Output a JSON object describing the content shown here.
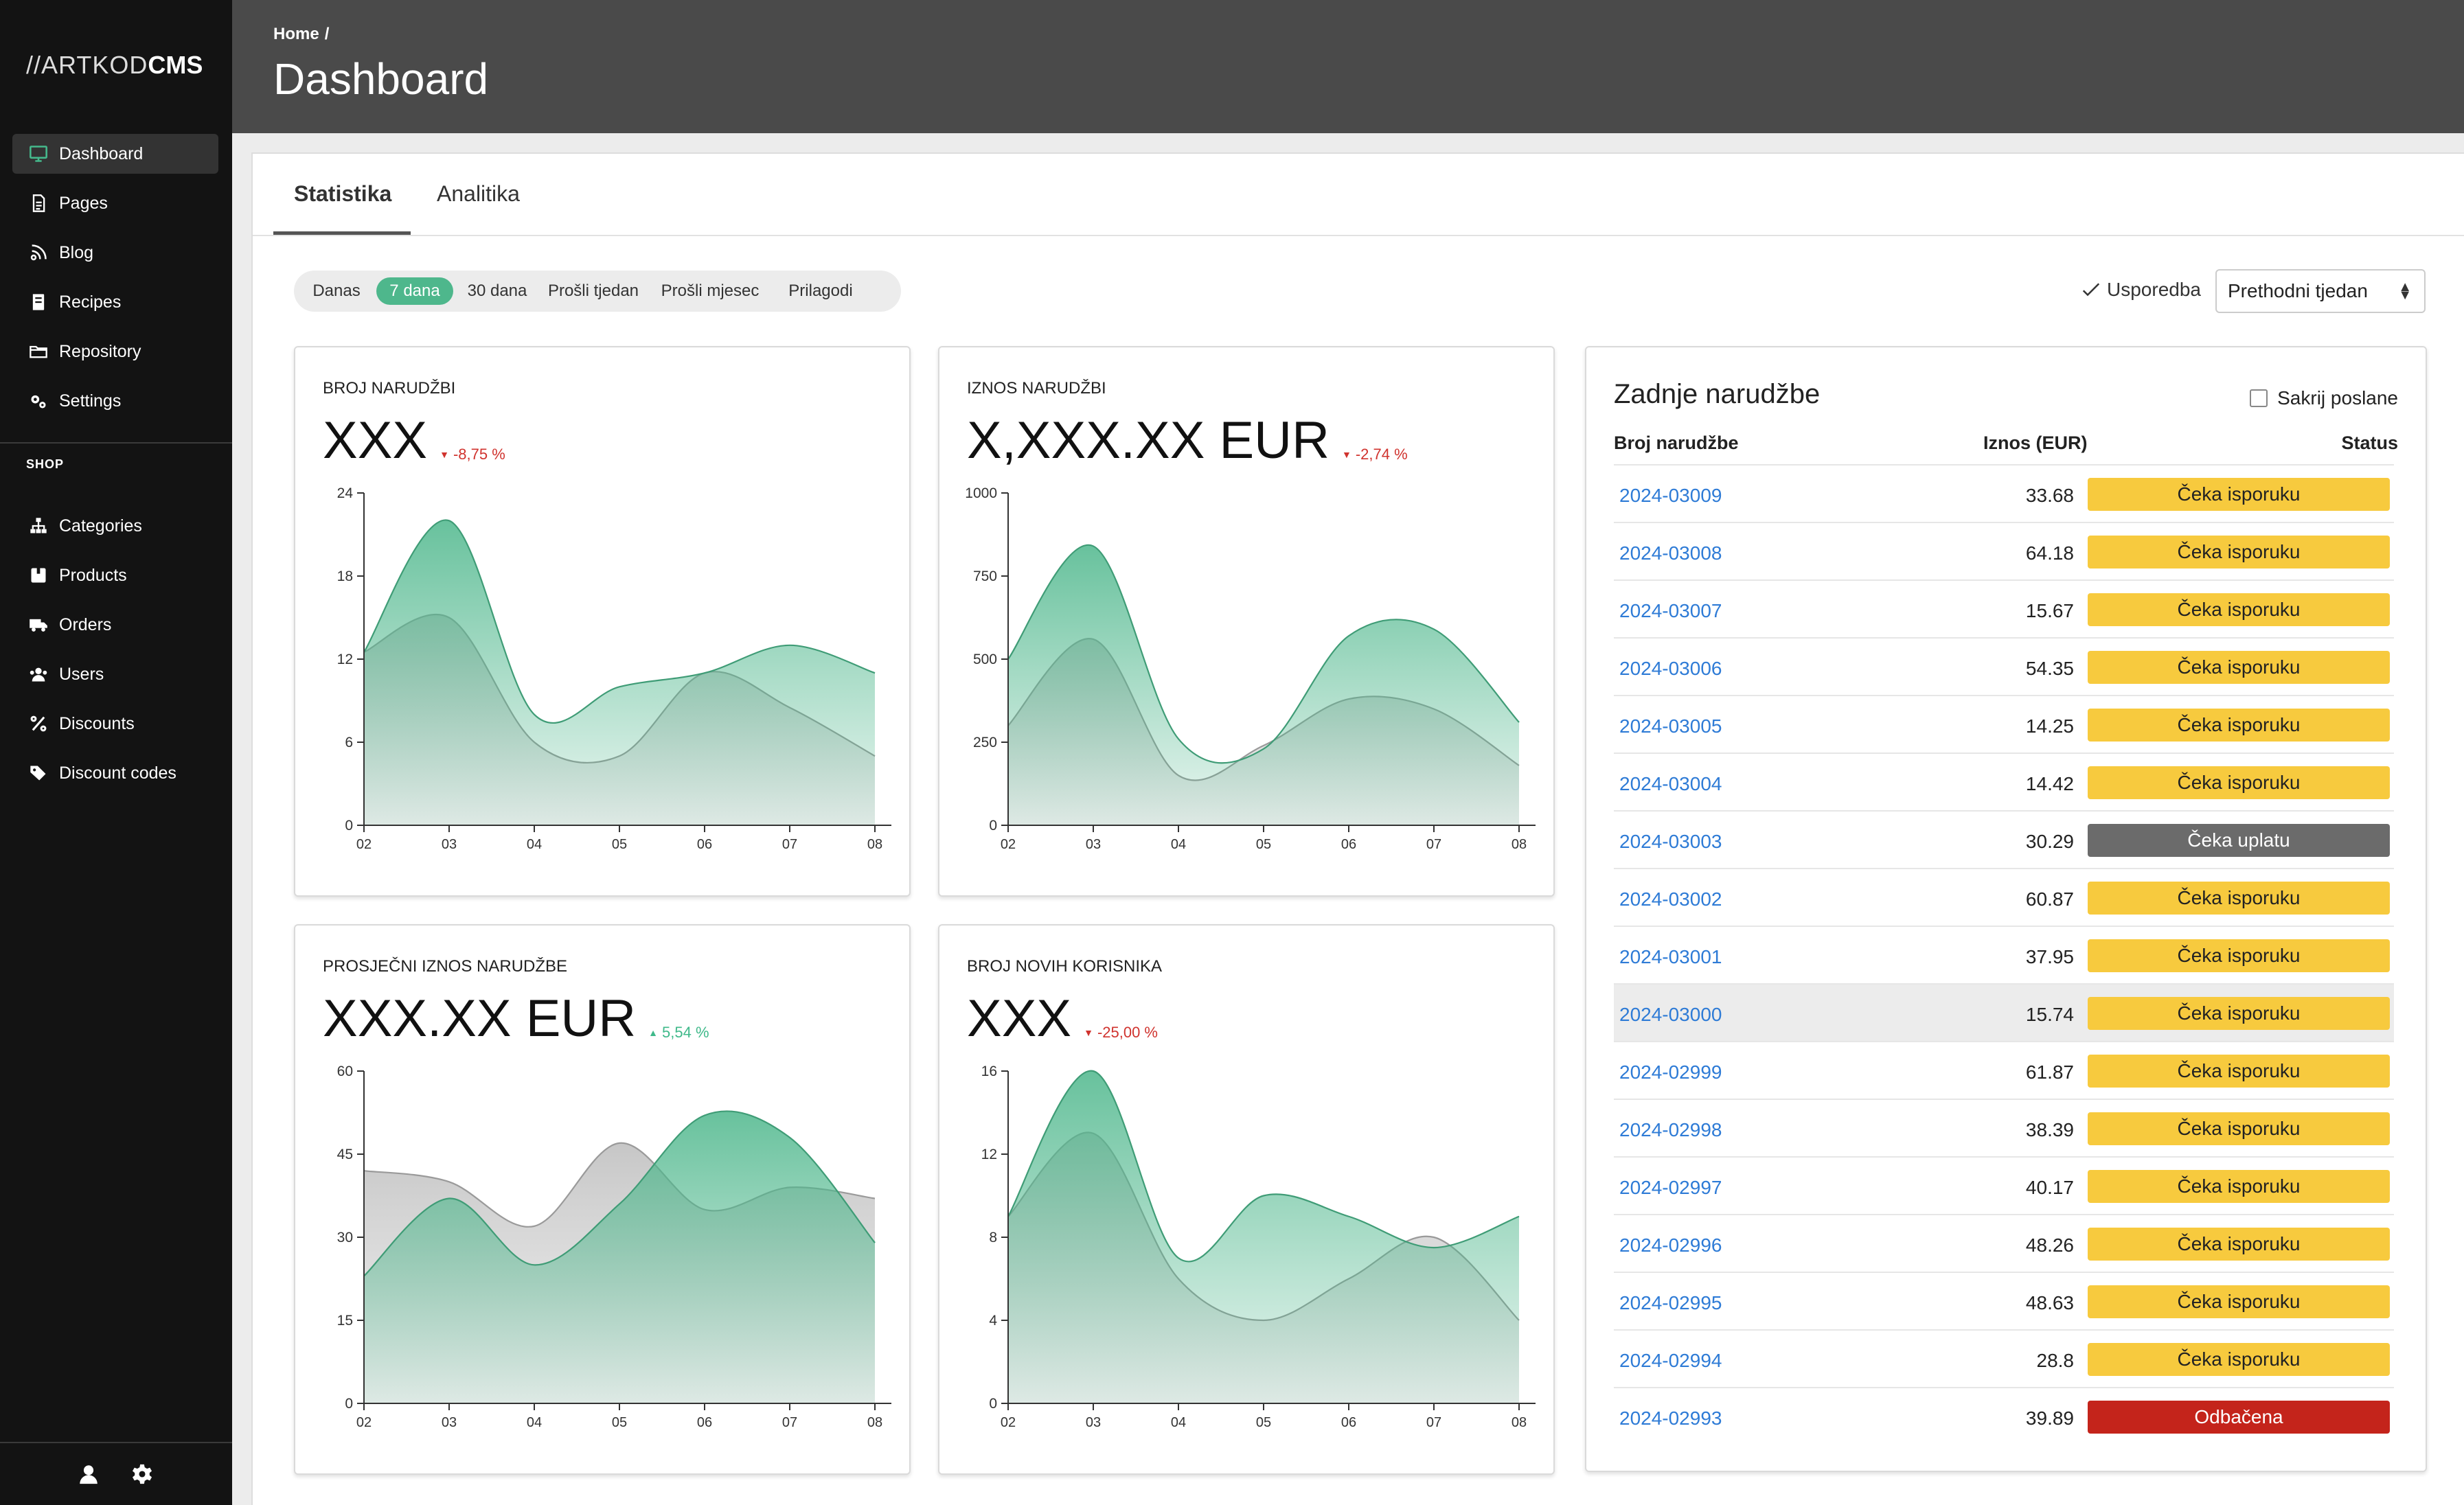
{
  "app": {
    "brand_light": "//ARTKOD",
    "brand_bold": "CMS"
  },
  "sidebar": {
    "items": [
      {
        "label": "Dashboard",
        "icon": "monitor-icon",
        "active": true
      },
      {
        "label": "Pages",
        "icon": "document-icon"
      },
      {
        "label": "Blog",
        "icon": "blog-icon"
      },
      {
        "label": "Recipes",
        "icon": "recipe-book-icon"
      },
      {
        "label": "Repository",
        "icon": "folder-icon"
      },
      {
        "label": "Settings",
        "icon": "gears-icon"
      }
    ],
    "shop_section": "SHOP",
    "shop_items": [
      {
        "label": "Categories",
        "icon": "sitemap-icon"
      },
      {
        "label": "Products",
        "icon": "box-icon"
      },
      {
        "label": "Orders",
        "icon": "truck-icon"
      },
      {
        "label": "Users",
        "icon": "users-icon"
      },
      {
        "label": "Discounts",
        "icon": "percent-icon"
      },
      {
        "label": "Discount codes",
        "icon": "tags-icon"
      }
    ],
    "footer_icons": [
      "user-icon",
      "gear-icon"
    ]
  },
  "header": {
    "breadcrumb_home": "Home",
    "breadcrumb_sep": "/",
    "title": "Dashboard"
  },
  "tabs": [
    {
      "label": "Statistika",
      "active": true
    },
    {
      "label": "Analitika"
    }
  ],
  "periods": [
    {
      "label": "Danas"
    },
    {
      "label": "7 dana",
      "active": true
    },
    {
      "label": "30 dana"
    },
    {
      "label": "Prošli tjedan"
    },
    {
      "label": "Prošli mjesec"
    },
    {
      "label": "Prilagodi"
    }
  ],
  "compare": {
    "label": "Usporedba",
    "checked": true,
    "select_value": "Prethodni tjedan"
  },
  "colors": {
    "accent": "#4eb78c",
    "sidebar": "#131313",
    "header": "#4a4a4a",
    "down": "#d0332e",
    "up": "#3fb98a",
    "link": "#2e7bd6",
    "waiting": "#f7ca3e",
    "payment": "#6b6b6b",
    "rejected": "#c4241b"
  },
  "cards": [
    {
      "label": "BROJ NARUDŽBI",
      "value": "XXX",
      "delta": "-8,75 %",
      "direction": "down"
    },
    {
      "label": "IZNOS NARUDŽBI",
      "value": "X,XXX.XX EUR",
      "delta": "-2,74 %",
      "direction": "down"
    },
    {
      "label": "PROSJEČNI IZNOS NARUDŽBE",
      "value": "XXX.XX EUR",
      "delta": "5,54 %",
      "direction": "up"
    },
    {
      "label": "BROJ NOVIH KORISNIKA",
      "value": "XXX",
      "delta": "-25,00 %",
      "direction": "down"
    }
  ],
  "chart_data": [
    {
      "type": "area",
      "x": [
        "02",
        "03",
        "04",
        "05",
        "06",
        "07",
        "08"
      ],
      "ylim": [
        0,
        24
      ],
      "yticks": [
        0,
        6,
        12,
        18,
        24
      ],
      "series": [
        {
          "values": [
            12.5,
            15,
            6,
            5,
            11,
            8.5,
            5
          ]
        },
        {
          "values": [
            12.5,
            22,
            8,
            10,
            11,
            13,
            11
          ]
        }
      ]
    },
    {
      "type": "area",
      "x": [
        "02",
        "03",
        "04",
        "05",
        "06",
        "07",
        "08"
      ],
      "ylim": [
        0,
        1000
      ],
      "yticks": [
        0,
        250,
        500,
        750,
        1000
      ],
      "series": [
        {
          "values": [
            300,
            560,
            150,
            240,
            380,
            350,
            180
          ]
        },
        {
          "values": [
            500,
            840,
            260,
            230,
            570,
            590,
            310
          ]
        }
      ]
    },
    {
      "type": "area",
      "x": [
        "02",
        "03",
        "04",
        "05",
        "06",
        "07",
        "08"
      ],
      "ylim": [
        0,
        60
      ],
      "yticks": [
        0,
        15,
        30,
        45,
        60
      ],
      "series": [
        {
          "values": [
            42,
            40,
            32,
            47,
            35,
            39,
            37
          ]
        },
        {
          "values": [
            23,
            37,
            25,
            36,
            52,
            48,
            29
          ]
        }
      ]
    },
    {
      "type": "area",
      "x": [
        "02",
        "03",
        "04",
        "05",
        "06",
        "07",
        "08"
      ],
      "ylim": [
        0,
        16
      ],
      "yticks": [
        0,
        4,
        8,
        12,
        16
      ],
      "series": [
        {
          "values": [
            9,
            13,
            6,
            4,
            6,
            8,
            4
          ]
        },
        {
          "values": [
            9,
            16,
            7,
            10,
            9,
            7.5,
            9
          ]
        }
      ]
    }
  ],
  "orders": {
    "title": "Zadnje narudžbe",
    "hide_sent_label": "Sakrij poslane",
    "columns": [
      "Broj narudžbe",
      "Iznos (EUR)",
      "Status"
    ],
    "rows": [
      {
        "id": "2024-03009",
        "amount": "33.68",
        "status": "Čeka isporuku",
        "kind": "wait"
      },
      {
        "id": "2024-03008",
        "amount": "64.18",
        "status": "Čeka isporuku",
        "kind": "wait"
      },
      {
        "id": "2024-03007",
        "amount": "15.67",
        "status": "Čeka isporuku",
        "kind": "wait"
      },
      {
        "id": "2024-03006",
        "amount": "54.35",
        "status": "Čeka isporuku",
        "kind": "wait"
      },
      {
        "id": "2024-03005",
        "amount": "14.25",
        "status": "Čeka isporuku",
        "kind": "wait"
      },
      {
        "id": "2024-03004",
        "amount": "14.42",
        "status": "Čeka isporuku",
        "kind": "wait"
      },
      {
        "id": "2024-03003",
        "amount": "30.29",
        "status": "Čeka uplatu",
        "kind": "pay"
      },
      {
        "id": "2024-03002",
        "amount": "60.87",
        "status": "Čeka isporuku",
        "kind": "wait"
      },
      {
        "id": "2024-03001",
        "amount": "37.95",
        "status": "Čeka isporuku",
        "kind": "wait"
      },
      {
        "id": "2024-03000",
        "amount": "15.74",
        "status": "Čeka isporuku",
        "kind": "wait",
        "hover": true
      },
      {
        "id": "2024-02999",
        "amount": "61.87",
        "status": "Čeka isporuku",
        "kind": "wait"
      },
      {
        "id": "2024-02998",
        "amount": "38.39",
        "status": "Čeka isporuku",
        "kind": "wait"
      },
      {
        "id": "2024-02997",
        "amount": "40.17",
        "status": "Čeka isporuku",
        "kind": "wait"
      },
      {
        "id": "2024-02996",
        "amount": "48.26",
        "status": "Čeka isporuku",
        "kind": "wait"
      },
      {
        "id": "2024-02995",
        "amount": "48.63",
        "status": "Čeka isporuku",
        "kind": "wait"
      },
      {
        "id": "2024-02994",
        "amount": "28.8",
        "status": "Čeka isporuku",
        "kind": "wait"
      },
      {
        "id": "2024-02993",
        "amount": "39.89",
        "status": "Odbačena",
        "kind": "rej"
      }
    ]
  }
}
